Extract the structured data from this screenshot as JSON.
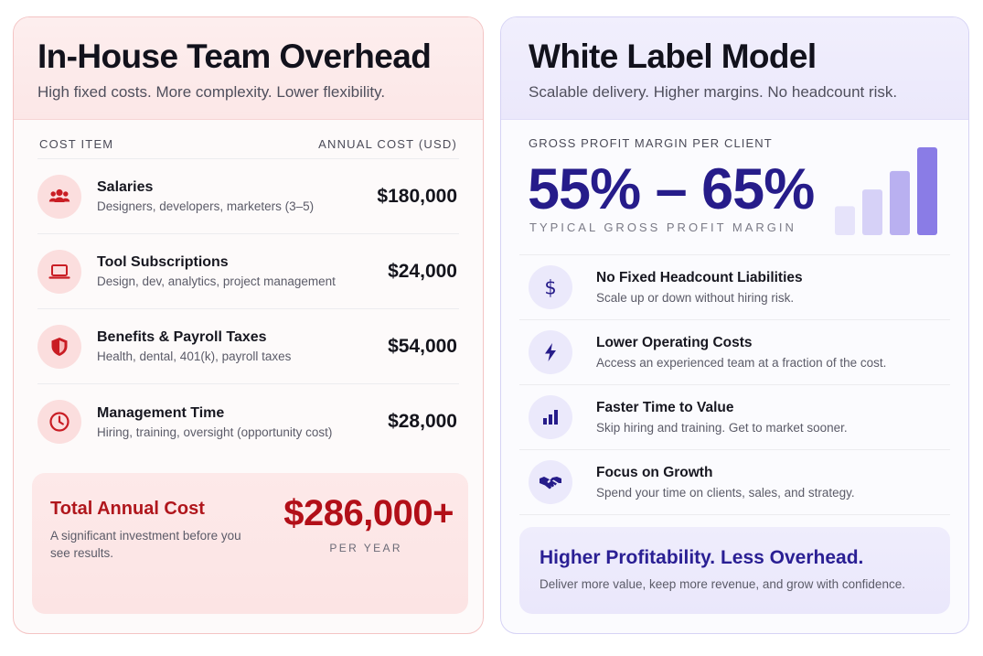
{
  "left": {
    "title": "In-House Team Overhead",
    "subtitle": "High fixed costs. More complexity. Lower flexibility.",
    "table_headers": {
      "item": "COST ITEM",
      "cost": "ANNUAL COST (USD)"
    },
    "rows": [
      {
        "icon": "team-icon",
        "name": "Salaries",
        "desc": "Designers, developers, marketers (3–5)",
        "amount": "$180,000"
      },
      {
        "icon": "laptop-icon",
        "name": "Tool Subscriptions",
        "desc": "Design, dev, analytics, project management",
        "amount": "$24,000"
      },
      {
        "icon": "shield-icon",
        "name": "Benefits & Payroll Taxes",
        "desc": "Health, dental, 401(k), payroll taxes",
        "amount": "$54,000"
      },
      {
        "icon": "clock-icon",
        "name": "Management Time",
        "desc": "Hiring, training, oversight (opportunity cost)",
        "amount": "$28,000"
      }
    ],
    "total": {
      "label": "Total Annual Cost",
      "desc": "A significant investment before you see results.",
      "amount": "$286,000+",
      "period": "PER YEAR"
    },
    "accent": "#b20f18"
  },
  "right": {
    "title": "White Label Model",
    "subtitle": "Scalable delivery. Higher margins. No headcount risk.",
    "margin_label": "GROSS PROFIT MARGIN PER CLIENT",
    "margin_value": "55% – 65%",
    "margin_caption": "TYPICAL GROSS PROFIT MARGIN",
    "bar_levels": [
      0.33,
      0.52,
      0.73,
      1.0
    ],
    "features": [
      {
        "icon": "dollar-icon",
        "name": "No Fixed Headcount Liabilities",
        "desc": "Scale up or down without hiring risk."
      },
      {
        "icon": "lightning-icon",
        "name": "Lower Operating Costs",
        "desc": "Access an experienced team at a fraction of the cost."
      },
      {
        "icon": "bar-chart-icon",
        "name": "Faster Time to Value",
        "desc": "Skip hiring and training. Get to market sooner."
      },
      {
        "icon": "handshake-icon",
        "name": "Focus on Growth",
        "desc": "Spend your time on clients, sales, and strategy."
      }
    ],
    "profit": {
      "title": "Higher Profitability. Less Overhead.",
      "desc": "Deliver more value, keep more revenue, and grow with confidence."
    },
    "accent": "#261c8a"
  }
}
